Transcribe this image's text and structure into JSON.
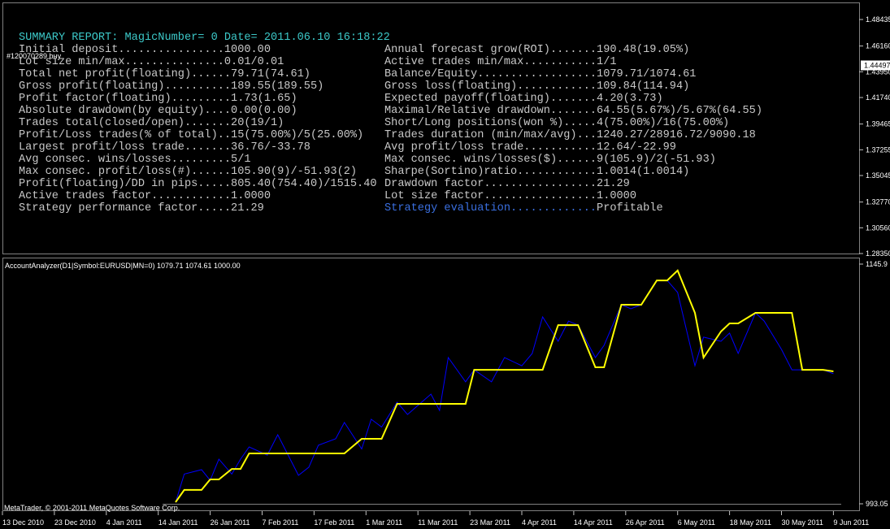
{
  "report": {
    "title": "SUMMARY REPORT: MagicNumber= 0 Date= 2011.06.10 16:18:22",
    "left": [
      {
        "label": "Initial deposit................",
        "value": "1000.00"
      },
      {
        "label": "Lot size min/max...............",
        "value": "0.01/0.01"
      },
      {
        "label": "Total net profit(floating)......",
        "value": "79.71(74.61)"
      },
      {
        "label": "Gross profit(floating)..........",
        "value": "189.55(189.55)"
      },
      {
        "label": "Profit factor(floating).........",
        "value": "1.73(1.65)"
      },
      {
        "label": "Absolute drawdown(by equity)....",
        "value": "0.00(0.00)"
      },
      {
        "label": "Trades total(closed/open).......",
        "value": "20(19/1)"
      },
      {
        "label": "Profit/Loss trades(% of total)..",
        "value": "15(75.00%)/5(25.00%)"
      },
      {
        "label": "Largest profit/loss trade.......",
        "value": "36.76/-33.78"
      },
      {
        "label": "Avg consec. wins/losses.........",
        "value": "5/1"
      },
      {
        "label": "Max consec. profit/loss(#)......",
        "value": "105.90(9)/-51.93(2)"
      },
      {
        "label": "Profit(floating)/DD in pips.....",
        "value": "805.40(754.40)/1515.40"
      },
      {
        "label": "Active trades factor............",
        "value": "1.0000"
      },
      {
        "label": "Strategy performance factor.....",
        "value": "21.29"
      }
    ],
    "right": [
      {
        "label": "Annual forecast grow(ROI).......",
        "value": "190.48(19.05%)"
      },
      {
        "label": "Active trades min/max...........",
        "value": "1/1"
      },
      {
        "label": "Balance/Equity..................",
        "value": "1079.71/1074.61"
      },
      {
        "label": "Gross loss(floating)............",
        "value": "109.84(114.94)"
      },
      {
        "label": "Expected payoff(floating).......",
        "value": "4.20(3.73)"
      },
      {
        "label": "Maximal/Relative drawdown.......",
        "value": "64.55(5.67%)/5.67%(64.55)"
      },
      {
        "label": "Short/Long positions(won %).....",
        "value": "4(75.00%)/16(75.00%)"
      },
      {
        "label": "Trades duration (min/max/avg)...",
        "value": "1240.27/28916.72/9090.18"
      },
      {
        "label": "Avg profit/loss trade...........",
        "value": "12.64/-22.99"
      },
      {
        "label": "Max consec. wins/losses($)......",
        "value": "9(105.9)/2(-51.93)"
      },
      {
        "label": "Sharpe(Sortino)ratio............",
        "value": "1.0014(1.0014)"
      },
      {
        "label": "Drawdown factor.................",
        "value": "21.29"
      },
      {
        "label": "Lot size factor.................",
        "value": "1.0000"
      },
      {
        "label": "Strategy evaluation.............",
        "value": "Profitable",
        "label_color": "#3a6fe0"
      }
    ]
  },
  "order_label": "#120070289 buy",
  "price_axis": {
    "ylim": [
      1.2835,
      1.48435
    ],
    "yticks": [
      {
        "value": 1.48435,
        "label": "1.48435"
      },
      {
        "value": 1.4616,
        "label": "1.46160"
      },
      {
        "value": 1.4395,
        "label": "1.43950"
      },
      {
        "value": 1.4174,
        "label": "1.41740"
      },
      {
        "value": 1.39465,
        "label": "1.39465"
      },
      {
        "value": 1.37255,
        "label": "1.37255"
      },
      {
        "value": 1.35045,
        "label": "1.35045"
      },
      {
        "value": 1.3277,
        "label": "1.32770"
      },
      {
        "value": 1.3056,
        "label": "1.30560"
      },
      {
        "value": 1.2835,
        "label": "1.28350"
      }
    ],
    "current_price": 1.44497
  },
  "chart_data": {
    "type": "line",
    "title": "AccountAnalyzer(D1|Symbol:EURUSD|MN=0) 1079.71 1074.61 1000.00",
    "footer": "MetaTrader, © 2001-2011 MetaQuotes Software Corp.",
    "ylim": [
      993.05,
      1145.9
    ],
    "yticks": [
      1145.9,
      993.05
    ],
    "xticks": [
      "13 Dec 2010",
      "23 Dec 2010",
      "4 Jan 2011",
      "14 Jan 2011",
      "26 Jan 2011",
      "7 Feb 2011",
      "17 Feb 2011",
      "1 Mar 2011",
      "11 Mar 2011",
      "23 Mar 2011",
      "4 Apr 2011",
      "14 Apr 2011",
      "26 Apr 2011",
      "6 May 2011",
      "18 May 2011",
      "30 May 2011",
      "9 Jun 2011"
    ],
    "x": [
      "2011-01-18",
      "2011-01-20",
      "2011-01-24",
      "2011-01-26",
      "2011-01-28",
      "2011-01-31",
      "2011-02-02",
      "2011-02-04",
      "2011-02-08",
      "2011-02-10",
      "2011-02-14",
      "2011-02-16",
      "2011-02-18",
      "2011-02-22",
      "2011-02-24",
      "2011-02-28",
      "2011-03-02",
      "2011-03-04",
      "2011-03-07",
      "2011-03-09",
      "2011-03-14",
      "2011-03-16",
      "2011-03-18",
      "2011-03-22",
      "2011-03-24",
      "2011-03-28",
      "2011-03-31",
      "2011-04-04",
      "2011-04-06",
      "2011-04-08",
      "2011-04-11",
      "2011-04-13",
      "2011-04-15",
      "2011-04-19",
      "2011-04-21",
      "2011-04-25",
      "2011-04-27",
      "2011-04-29",
      "2011-05-02",
      "2011-05-04",
      "2011-05-06",
      "2011-05-10",
      "2011-05-12",
      "2011-05-16",
      "2011-05-18",
      "2011-05-20",
      "2011-05-24",
      "2011-05-26",
      "2011-05-30",
      "2011-06-01",
      "2011-06-03",
      "2011-06-07",
      "2011-06-09"
    ],
    "series": [
      {
        "color": "#0000ff",
        "values": [
          994,
          1012,
          1014.8,
          1008,
          1021.5,
          1012,
          1021.5,
          1029.3,
          1024.1,
          1037.1,
          1011.2,
          1016.4,
          1030.4,
          1034.5,
          1044.9,
          1028,
          1047,
          1042,
          1057.8,
          1050,
          1063,
          1052.6,
          1086.3,
          1070.8,
          1078.5,
          1070.8,
          1086.3,
          1081.1,
          1088.9,
          1112.2,
          1096.7,
          1109.6,
          1107,
          1086.3,
          1094.1,
          1120,
          1117.4,
          1120,
          1135.5,
          1135.5,
          1127.8,
          1081.1,
          1099.3,
          1096.7,
          1101.9,
          1088.9,
          1114.8,
          1109.6,
          1091.5,
          1078.5,
          1078.5,
          1078.5,
          1076
        ]
      },
      {
        "color": "#ffff00",
        "values": [
          994.1,
          1001.9,
          1001.9,
          1008.6,
          1008.6,
          1015.3,
          1015.3,
          1025.2,
          1025.2,
          1025.2,
          1025.2,
          1025.2,
          1025.2,
          1025.2,
          1025.2,
          1034.5,
          1034.5,
          1034.5,
          1056.8,
          1056.8,
          1056.8,
          1056.8,
          1056.8,
          1056.8,
          1078.5,
          1078.5,
          1078.5,
          1078.5,
          1078.5,
          1078.5,
          1107,
          1107,
          1107,
          1080.1,
          1080.1,
          1120,
          1120,
          1120,
          1135.5,
          1135.5,
          1141.8,
          1114.8,
          1086.3,
          1102.9,
          1108.1,
          1108.1,
          1114.8,
          1114.8,
          1114.8,
          1114.8,
          1078.5,
          1078.5,
          1077.5
        ]
      }
    ]
  }
}
